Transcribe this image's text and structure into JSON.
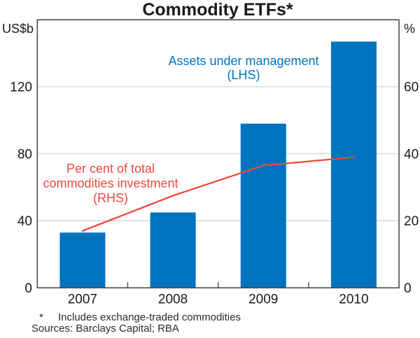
{
  "page": {
    "title": "Commodity ETFs*"
  },
  "axes": {
    "left_unit": "US$b",
    "right_unit": "%"
  },
  "annotations": {
    "aum_line1": "Assets under management",
    "aum_line2": "(LHS)",
    "pct_line1": "Per cent of total",
    "pct_line2": "commodities investment",
    "pct_line3": "(RHS)"
  },
  "footnote": {
    "marker": "*",
    "text": "Includes exchange-traded commodities",
    "sources": "Sources: Barclays Capital; RBA"
  },
  "colors": {
    "bar": "#0073be",
    "line": "#f5463d",
    "frame": "#4a4a4a",
    "grid": "#c9c9c9",
    "text": "#1a1a1a",
    "annotation_blue": "#0073be",
    "annotation_red": "#f5463d"
  },
  "chart_data": {
    "type": "bar",
    "title": "Commodity ETFs*",
    "categories": [
      "2007",
      "2008",
      "2009",
      "2010"
    ],
    "series": [
      {
        "name": "Assets under management (LHS)",
        "type": "bar",
        "axis": "left",
        "values": [
          33,
          45,
          98,
          147
        ]
      },
      {
        "name": "Per cent of total commodities investment (RHS)",
        "type": "line",
        "axis": "right",
        "values": [
          17,
          27.5,
          36.5,
          39
        ]
      }
    ],
    "left_axis": {
      "label": "US$b",
      "min": 0,
      "max": 160,
      "ticks": [
        0,
        40,
        80,
        120
      ]
    },
    "right_axis": {
      "label": "%",
      "min": 0,
      "max": 80,
      "ticks": [
        0,
        20,
        40,
        60
      ]
    },
    "grid": true,
    "legend_position": "none",
    "footnote": "* Includes exchange-traded commodities",
    "sources": "Sources: Barclays Capital; RBA"
  }
}
